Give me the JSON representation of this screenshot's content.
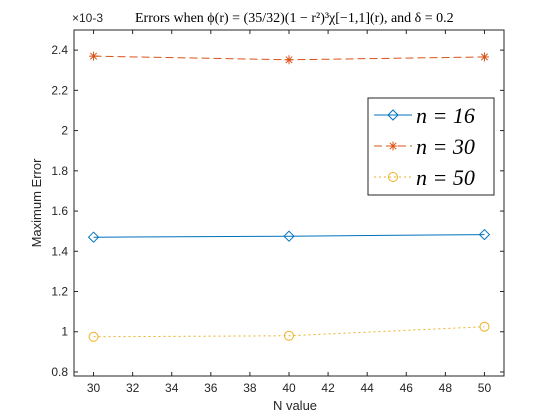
{
  "chart_data": {
    "type": "line",
    "title": "Errors when ϕ(r) = (35/32)(1 − r²)³χ[−1,1](r), and δ = 0.2",
    "xlabel": "N value",
    "ylabel": "Maximum Error",
    "y_multiplier": "×10-3",
    "xlim": [
      29,
      51
    ],
    "ylim": [
      0.78,
      2.5
    ],
    "x_ticks": [
      "30",
      "32",
      "34",
      "36",
      "38",
      "40",
      "42",
      "44",
      "46",
      "48",
      "50"
    ],
    "y_ticks": [
      "0.8",
      "1",
      "1.2",
      "1.4",
      "1.6",
      "1.8",
      "2",
      "2.2",
      "2.4"
    ],
    "grid": false,
    "legend_position": "right",
    "x": [
      30,
      40,
      50
    ],
    "series": [
      {
        "name": "n = 16",
        "values": [
          1.47,
          1.475,
          1.483
        ],
        "color": "#0072BD",
        "marker": "diamond",
        "line_style": "solid"
      },
      {
        "name": "n = 30",
        "values": [
          2.37,
          2.352,
          2.366
        ],
        "color": "#D95319",
        "marker": "asterisk",
        "line_style": "dashed"
      },
      {
        "name": "n = 50",
        "values": [
          0.975,
          0.98,
          1.025
        ],
        "color": "#EDB120",
        "marker": "circle",
        "line_style": "dotted"
      }
    ]
  }
}
